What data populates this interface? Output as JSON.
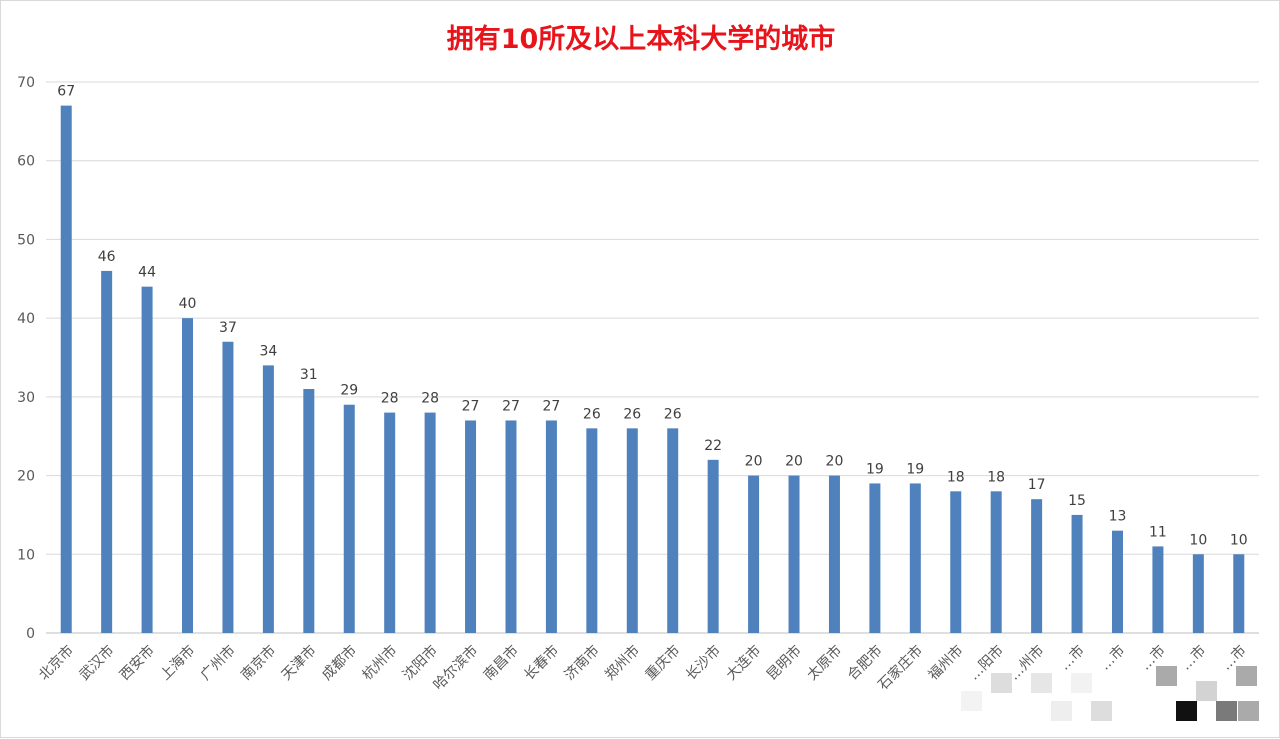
{
  "chart_data": {
    "type": "bar",
    "title": "拥有10所及以上本科大学的城市",
    "categories": [
      "北京市",
      "武汉市",
      "西安市",
      "上海市",
      "广州市",
      "南京市",
      "天津市",
      "成都市",
      "杭州市",
      "沈阳市",
      "哈尔滨市",
      "南昌市",
      "长春市",
      "济南市",
      "郑州市",
      "重庆市",
      "长沙市",
      "大连市",
      "昆明市",
      "太原市",
      "合肥市",
      "石家庄市",
      "福州市",
      "…阳市",
      "…州市",
      "…市",
      "…市",
      "…市",
      "…市",
      "…市"
    ],
    "values": [
      67,
      46,
      44,
      40,
      37,
      34,
      31,
      29,
      28,
      28,
      27,
      27,
      27,
      26,
      26,
      26,
      22,
      20,
      20,
      20,
      19,
      19,
      18,
      18,
      17,
      15,
      13,
      11,
      10,
      10
    ],
    "ylim": [
      0,
      70
    ],
    "yticks": [
      0,
      10,
      20,
      30,
      40,
      50,
      60,
      70
    ],
    "grid": true,
    "legend": "none",
    "data_labels": true,
    "bar_color": "#4f81bd",
    "title_color": "#e8141b"
  }
}
